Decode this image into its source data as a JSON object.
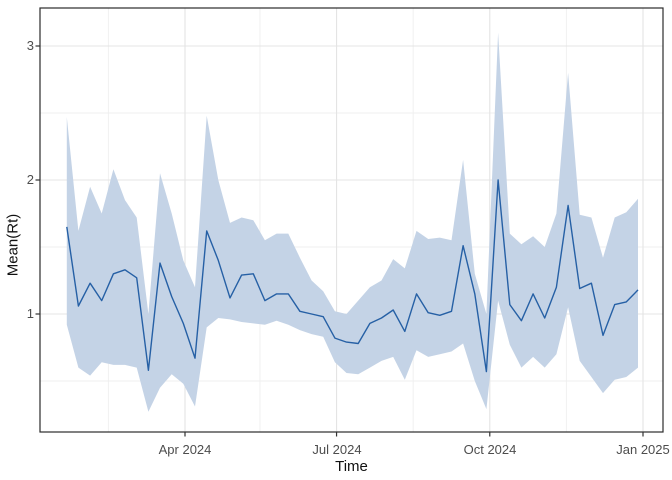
{
  "figure": {
    "kind": "ggplot-line-ribbon",
    "background": "#ffffff"
  },
  "axes": {
    "x": {
      "title": "Time",
      "tick_labels": [
        "Apr 2024",
        "Jul 2024",
        "Oct 2024",
        "Jan 2025"
      ]
    },
    "y": {
      "title": "Mean(Rt)",
      "tick_labels": [
        "3",
        "2",
        "1"
      ]
    }
  },
  "chart_data": {
    "type": "line",
    "title": "",
    "xlabel": "Time",
    "ylabel": "Mean(Rt)",
    "legend": "none",
    "grid": "on",
    "ylim": [
      0.11,
      3.28
    ],
    "y_major_ticks": [
      1,
      2,
      3
    ],
    "y_minor_ticks": [
      0.5,
      1.5,
      2.5
    ],
    "x_major_ticks": [
      {
        "date": "2024-04-01",
        "label": "Apr 2024"
      },
      {
        "date": "2024-07-01",
        "label": "Jul 2024"
      },
      {
        "date": "2024-10-01",
        "label": "Oct 2024"
      },
      {
        "date": "2025-01-01",
        "label": "Jan 2025"
      }
    ],
    "x_minor_tick_dates": [
      "2024-02-15",
      "2024-05-16",
      "2024-08-16",
      "2024-11-16"
    ],
    "x": [
      "2024-01-21",
      "2024-01-28",
      "2024-02-04",
      "2024-02-11",
      "2024-02-18",
      "2024-02-25",
      "2024-03-03",
      "2024-03-10",
      "2024-03-17",
      "2024-03-24",
      "2024-03-31",
      "2024-04-07",
      "2024-04-14",
      "2024-04-21",
      "2024-04-28",
      "2024-05-05",
      "2024-05-12",
      "2024-05-19",
      "2024-05-26",
      "2024-06-02",
      "2024-06-09",
      "2024-06-16",
      "2024-06-23",
      "2024-06-30",
      "2024-07-07",
      "2024-07-14",
      "2024-07-21",
      "2024-07-28",
      "2024-08-04",
      "2024-08-11",
      "2024-08-18",
      "2024-08-25",
      "2024-09-01",
      "2024-09-08",
      "2024-09-15",
      "2024-09-22",
      "2024-09-29",
      "2024-10-06",
      "2024-10-13",
      "2024-10-20",
      "2024-10-27",
      "2024-11-03",
      "2024-11-10",
      "2024-11-17",
      "2024-11-24",
      "2024-12-01",
      "2024-12-08",
      "2024-12-15",
      "2024-12-22",
      "2024-12-29"
    ],
    "series": [
      {
        "name": "mean_rt",
        "values": [
          1.65,
          1.06,
          1.23,
          1.1,
          1.3,
          1.33,
          1.27,
          0.58,
          1.38,
          1.13,
          0.93,
          0.67,
          1.62,
          1.4,
          1.12,
          1.29,
          1.3,
          1.1,
          1.15,
          1.15,
          1.02,
          1.0,
          0.98,
          0.82,
          0.79,
          0.78,
          0.93,
          0.97,
          1.03,
          0.87,
          1.15,
          1.01,
          0.99,
          1.02,
          1.51,
          1.15,
          0.57,
          2.0,
          1.07,
          0.95,
          1.15,
          0.97,
          1.2,
          1.81,
          1.19,
          1.23,
          0.84,
          1.07,
          1.09,
          1.18
        ]
      },
      {
        "name": "ci_lower",
        "values": [
          0.92,
          0.6,
          0.54,
          0.64,
          0.62,
          0.62,
          0.6,
          0.27,
          0.45,
          0.55,
          0.48,
          0.31,
          0.9,
          0.97,
          0.96,
          0.94,
          0.93,
          0.92,
          0.95,
          0.92,
          0.88,
          0.85,
          0.83,
          0.64,
          0.56,
          0.55,
          0.6,
          0.65,
          0.68,
          0.51,
          0.73,
          0.68,
          0.7,
          0.72,
          0.78,
          0.5,
          0.29,
          1.1,
          0.77,
          0.6,
          0.68,
          0.6,
          0.7,
          1.05,
          0.65,
          0.53,
          0.41,
          0.51,
          0.53,
          0.6
        ]
      },
      {
        "name": "ci_upper",
        "values": [
          2.47,
          1.62,
          1.95,
          1.75,
          2.08,
          1.85,
          1.72,
          1.0,
          2.05,
          1.75,
          1.4,
          1.2,
          2.48,
          2.0,
          1.68,
          1.72,
          1.7,
          1.55,
          1.6,
          1.6,
          1.42,
          1.25,
          1.17,
          1.02,
          1.0,
          1.1,
          1.2,
          1.25,
          1.41,
          1.34,
          1.62,
          1.56,
          1.57,
          1.55,
          2.15,
          1.3,
          1.0,
          3.1,
          1.6,
          1.52,
          1.58,
          1.5,
          1.75,
          2.8,
          1.74,
          1.72,
          1.42,
          1.72,
          1.76,
          1.86
        ]
      }
    ],
    "colors": {
      "line": "#2660a5",
      "ribbon": "#c4d3e6",
      "grid_major": "#e4e4e4",
      "grid_minor": "#efefef",
      "panel_border": "#2b2b2b",
      "tick_mark": "#333333",
      "tick_label": "#4d4d4d",
      "axis_title": "#111111"
    }
  }
}
